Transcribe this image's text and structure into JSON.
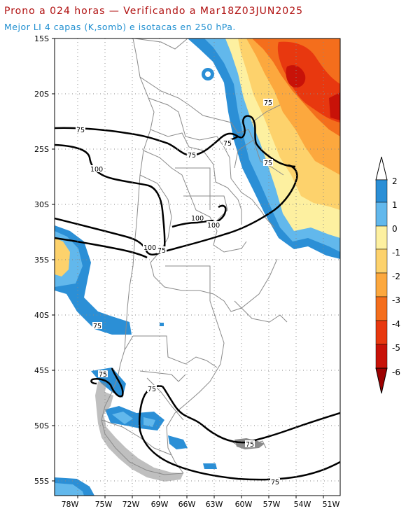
{
  "header": {
    "title_line1": "Prono a 024 horas — Verificando a Mar18Z03JUN2025",
    "title_line2": "Mejor LI 4 capas (K,somb) e isotacas en 250 hPa."
  },
  "map": {
    "lat_labels": [
      "15S",
      "20S",
      "25S",
      "30S",
      "35S",
      "40S",
      "45S",
      "50S",
      "55S"
    ],
    "lon_labels": [
      "78W",
      "75W",
      "72W",
      "69W",
      "66W",
      "63W",
      "60W",
      "57W",
      "54W",
      "51W"
    ],
    "isotach_labels": [
      "75",
      "75",
      "75",
      "75",
      "100",
      "100",
      "100",
      "100",
      "75",
      "75",
      "75",
      "75",
      "75",
      "75"
    ]
  },
  "colorbar": {
    "ticks": [
      "2",
      "1",
      "0",
      "-1",
      "-2",
      "-3",
      "-4",
      "-5",
      "-6"
    ],
    "colors": [
      "#ffffff",
      "#2b8fd6",
      "#62b8ec",
      "#fdf0a0",
      "#fdd26c",
      "#fca83e",
      "#f46e1c",
      "#e8380f",
      "#c81208",
      "#9c0000"
    ]
  },
  "colors": {
    "li_2": "#2b8fd6",
    "li_1": "#62b8ec",
    "li_0": "#fdf0a0",
    "li_m1": "#fdd26c",
    "li_m2": "#fca83e",
    "li_m3": "#f46e1c",
    "li_m4": "#e8380f",
    "li_m5": "#c81208",
    "borders": "#8a8a8a",
    "isotach": "#000000"
  }
}
